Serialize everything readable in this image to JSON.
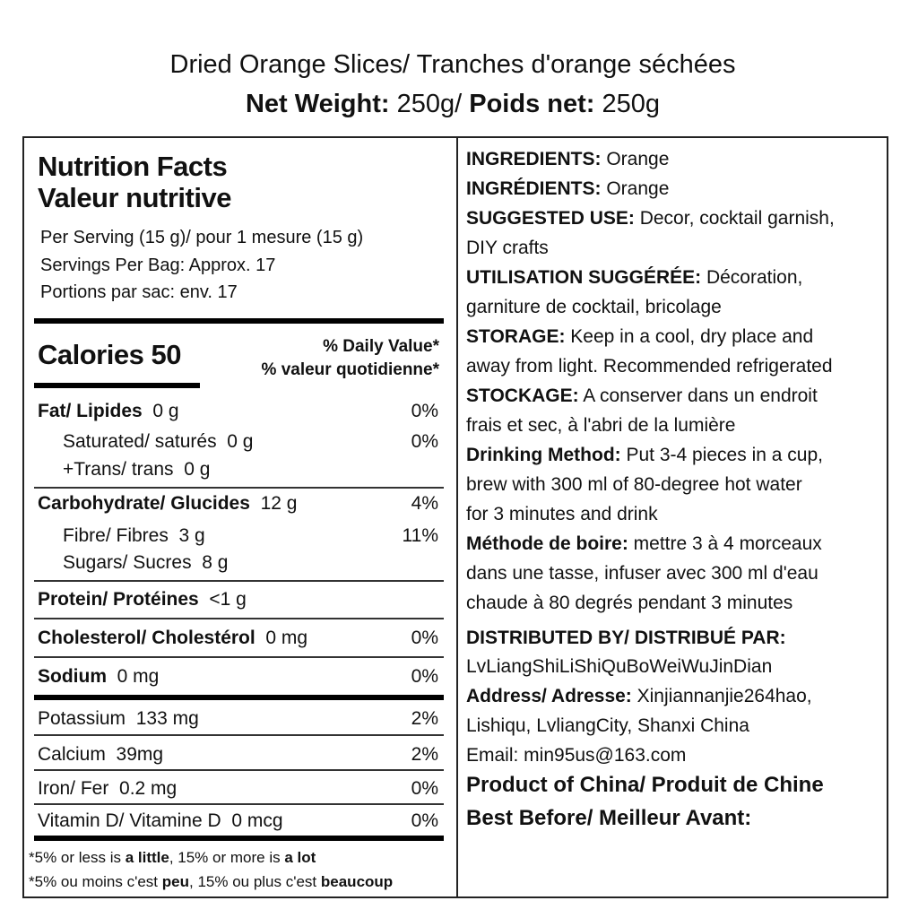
{
  "header": {
    "product_name": "Dried Orange Slices/ Tranches d'orange séchées",
    "net_weight_label_en": "Net Weight:",
    "net_weight_value_en": " 250g/",
    "net_weight_label_fr": " Poids net:",
    "net_weight_value_fr": " 250g"
  },
  "nutrition": {
    "title_en": "Nutrition Facts",
    "title_fr": "Valeur nutritive",
    "serving": "Per Serving (15 g)/ pour 1 mesure (15 g)",
    "servings_per_bag": "Servings Per Bag: Approx. 17",
    "portions": "Portions par sac: env. 17",
    "calories": "Calories 50",
    "dv_en": "% Daily Value*",
    "dv_fr": "% valeur quotidienne*",
    "rows": [
      {
        "label": "Fat/ Lipides",
        "amount": "0 g",
        "pct": "0%",
        "bold": true,
        "indent": false
      },
      {
        "label": "Saturated/ saturés",
        "amount": "0 g",
        "pct": "0%",
        "bold": false,
        "indent": true
      },
      {
        "label": "+Trans/ trans",
        "amount": "0 g",
        "pct": "",
        "bold": false,
        "indent": true
      },
      {
        "label": "Carbohydrate/ Glucides",
        "amount": "12 g",
        "pct": "4%",
        "bold": true,
        "indent": false
      },
      {
        "label": "Fibre/ Fibres",
        "amount": "3 g",
        "pct": "11%",
        "bold": false,
        "indent": true
      },
      {
        "label": "Sugars/ Sucres",
        "amount": "8 g",
        "pct": "",
        "bold": false,
        "indent": true
      },
      {
        "label": "Protein/ Protéines",
        "amount": "<1 g",
        "pct": "",
        "bold": true,
        "indent": false
      },
      {
        "label": "Cholesterol/ Cholestérol",
        "amount": "0 mg",
        "pct": "0%",
        "bold": true,
        "indent": false
      },
      {
        "label": "Sodium",
        "amount": "0 mg",
        "pct": "0%",
        "bold": true,
        "indent": false
      },
      {
        "label": "Potassium",
        "amount": "133 mg",
        "pct": "2%",
        "bold": false,
        "indent": false
      },
      {
        "label": "Calcium",
        "amount": "39mg",
        "pct": "2%",
        "bold": false,
        "indent": false
      },
      {
        "label": "Iron/ Fer",
        "amount": "0.2 mg",
        "pct": "0%",
        "bold": false,
        "indent": false
      },
      {
        "label": "Vitamin D/ Vitamine D",
        "amount": "0 mcg",
        "pct": "0%",
        "bold": false,
        "indent": false
      }
    ],
    "footnote_en": [
      {
        "t": "*5% or less is ",
        "b": false
      },
      {
        "t": "a little",
        "b": true
      },
      {
        "t": ", 15% or more is ",
        "b": false
      },
      {
        "t": "a lot",
        "b": true
      }
    ],
    "footnote_fr": [
      {
        "t": "*5% ou moins c'est ",
        "b": false
      },
      {
        "t": "peu",
        "b": true
      },
      {
        "t": ", 15% ou plus c'est ",
        "b": false
      },
      {
        "t": "beaucoup",
        "b": true
      }
    ]
  },
  "info": {
    "lines": [
      {
        "b": "INGREDIENTS:",
        "t": " Orange"
      },
      {
        "b": "INGRÉDIENTS:",
        "t": " Orange"
      },
      {
        "b": "SUGGESTED USE:",
        "t": " Decor, cocktail garnish,"
      },
      {
        "b": "",
        "t": "DIY crafts"
      },
      {
        "b": "UTILISATION SUGGÉRÉE:",
        "t": " Décoration,"
      },
      {
        "b": "",
        "t": "garniture de cocktail, bricolage"
      },
      {
        "b": "STORAGE:",
        "t": " Keep in a cool, dry place and"
      },
      {
        "b": "",
        "t": "away from light. Recommended refrigerated"
      },
      {
        "b": "STOCKAGE:",
        "t": " A conserver dans un endroit"
      },
      {
        "b": "",
        "t": "frais et sec, à l'abri de la lumière"
      },
      {
        "b": "Drinking Method:",
        "t": " Put 3-4 pieces in a cup,"
      },
      {
        "b": "",
        "t": "brew with 300 ml of 80-degree hot water"
      },
      {
        "b": "",
        "t": "for 3 minutes and drink"
      },
      {
        "b": "Méthode de boire:",
        "t": " mettre 3 à 4 morceaux"
      },
      {
        "b": "",
        "t": "dans une tasse, infuser avec 300 ml d'eau"
      },
      {
        "b": "",
        "t": "chaude à 80 degrés pendant 3 minutes"
      },
      {
        "b": "DISTRIBUTED BY/ DISTRIBUÉ PAR:",
        "t": ""
      },
      {
        "b": "",
        "t": "LvLiangShiLiShiQuBoWeiWuJinDian"
      },
      {
        "b": "Address/ Adresse:",
        "t": " Xinjiannanjie264hao,"
      },
      {
        "b": "",
        "t": "Lishiqu, LvliangCity, Shanxi China"
      },
      {
        "b": "",
        "t": "Email: min95us@163.com"
      },
      {
        "b": "Product of China/ Produit de Chine",
        "t": ""
      },
      {
        "b": "Best Before/ Meilleur Avant:",
        "t": ""
      }
    ]
  }
}
